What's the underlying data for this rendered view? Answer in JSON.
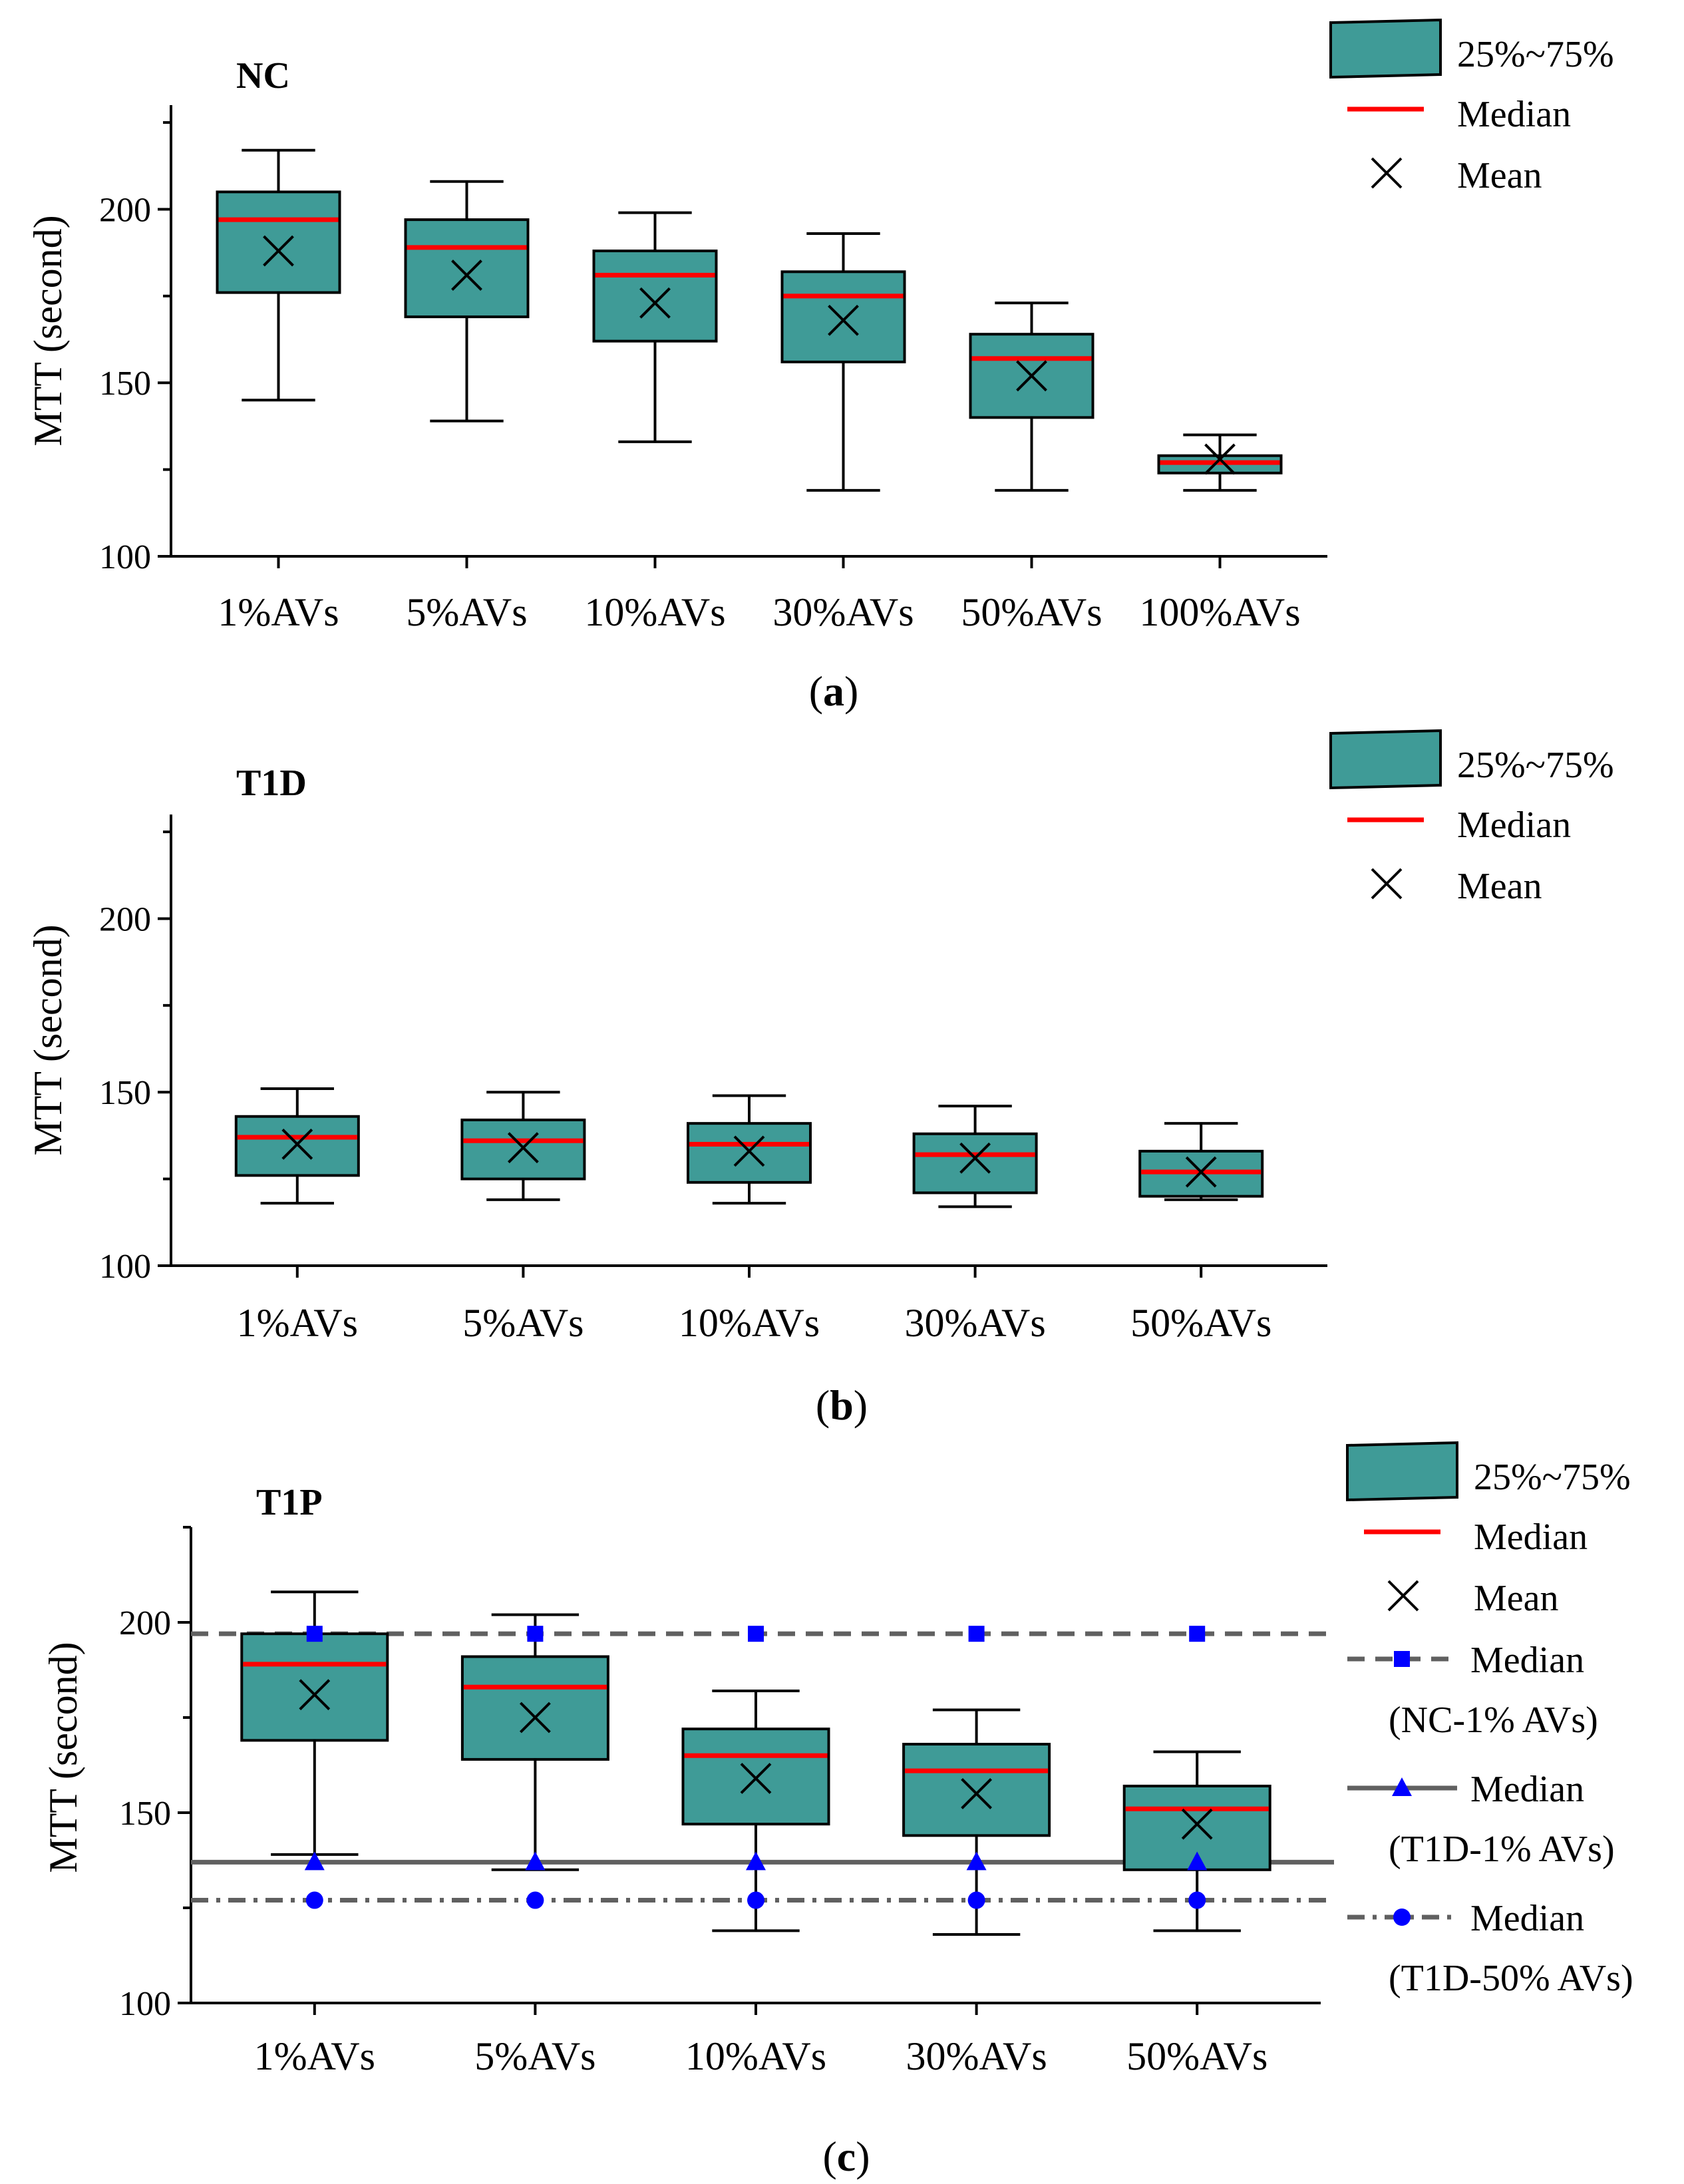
{
  "colors": {
    "box_fill": "#3f9b97",
    "box_stroke": "#000000",
    "median_line": "#ff0000",
    "mean_marker": "#000000",
    "ref_marker": "#0000ff",
    "ref_line": "#606060"
  },
  "legend_base": {
    "box": "25%~75%",
    "median": "Median",
    "mean": "Mean"
  },
  "legend_extra": [
    {
      "line1": "Median",
      "line2": "(NC-1% AVs)",
      "marker": "square",
      "style": "dash"
    },
    {
      "line1": "Median",
      "line2": "(T1D-1% AVs)",
      "marker": "triangle",
      "style": "solid"
    },
    {
      "line1": "Median",
      "line2": "(T1D-50% AVs)",
      "marker": "circle",
      "style": "dashdot"
    }
  ],
  "chart_data": [
    {
      "type": "box",
      "title": "NC",
      "caption": "(a)",
      "caption_letter": "a",
      "ylabel": "MTT (second)",
      "ylim": [
        100,
        230
      ],
      "yticks": [
        "100",
        "150",
        "200"
      ],
      "categories": [
        "1%AVs",
        "5%AVs",
        "10%AVs",
        "30%AVs",
        "50%AVs",
        "100%AVs"
      ],
      "boxes": [
        {
          "min": 145,
          "q1": 176,
          "median": 197,
          "q3": 205,
          "max": 217,
          "mean": 188
        },
        {
          "min": 139,
          "q1": 169,
          "median": 189,
          "q3": 197,
          "max": 208,
          "mean": 181
        },
        {
          "min": 133,
          "q1": 162,
          "median": 181,
          "q3": 188,
          "max": 199,
          "mean": 173
        },
        {
          "min": 119,
          "q1": 156,
          "median": 175,
          "q3": 182,
          "max": 193,
          "mean": 168
        },
        {
          "min": 119,
          "q1": 140,
          "median": 157,
          "q3": 164,
          "max": 173,
          "mean": 152
        },
        {
          "min": 119,
          "q1": 124,
          "median": 127,
          "q3": 129,
          "max": 135,
          "mean": 128
        }
      ],
      "reference_lines": []
    },
    {
      "type": "box",
      "title": "T1D",
      "caption": "(b)",
      "caption_letter": "b",
      "ylabel": "MTT (second)",
      "ylim": [
        100,
        230
      ],
      "yticks": [
        "100",
        "150",
        "200"
      ],
      "categories": [
        "1%AVs",
        "5%AVs",
        "10%AVs",
        "30%AVs",
        "50%AVs"
      ],
      "boxes": [
        {
          "min": 118,
          "q1": 126,
          "median": 137,
          "q3": 143,
          "max": 151,
          "mean": 135
        },
        {
          "min": 119,
          "q1": 125,
          "median": 136,
          "q3": 142,
          "max": 150,
          "mean": 134
        },
        {
          "min": 118,
          "q1": 124,
          "median": 135,
          "q3": 141,
          "max": 149,
          "mean": 133
        },
        {
          "min": 117,
          "q1": 121,
          "median": 132,
          "q3": 138,
          "max": 146,
          "mean": 131
        },
        {
          "min": 119,
          "q1": 120,
          "median": 127,
          "q3": 133,
          "max": 141,
          "mean": 127
        }
      ],
      "reference_lines": []
    },
    {
      "type": "box",
      "title": "T1P",
      "caption": "(c)",
      "caption_letter": "c",
      "ylabel": "MTT (second)",
      "ylim": [
        100,
        225
      ],
      "yticks": [
        "100",
        "150",
        "200"
      ],
      "categories": [
        "1%AVs",
        "5%AVs",
        "10%AVs",
        "30%AVs",
        "50%AVs"
      ],
      "boxes": [
        {
          "min": 139,
          "q1": 169,
          "median": 189,
          "q3": 197,
          "max": 208,
          "mean": 181
        },
        {
          "min": 135,
          "q1": 164,
          "median": 183,
          "q3": 191,
          "max": 202,
          "mean": 175
        },
        {
          "min": 119,
          "q1": 147,
          "median": 165,
          "q3": 172,
          "max": 182,
          "mean": 159
        },
        {
          "min": 118,
          "q1": 144,
          "median": 161,
          "q3": 168,
          "max": 177,
          "mean": 155
        },
        {
          "min": 119,
          "q1": 135,
          "median": 151,
          "q3": 157,
          "max": 166,
          "mean": 147
        }
      ],
      "reference_lines": [
        {
          "name": "Median (NC-1% AVs)",
          "value": 197,
          "style": "dash",
          "marker": "square"
        },
        {
          "name": "Median (T1D-1% AVs)",
          "value": 137,
          "style": "solid",
          "marker": "triangle"
        },
        {
          "name": "Median (T1D-50% AVs)",
          "value": 127,
          "style": "dashdot",
          "marker": "circle"
        }
      ]
    }
  ]
}
